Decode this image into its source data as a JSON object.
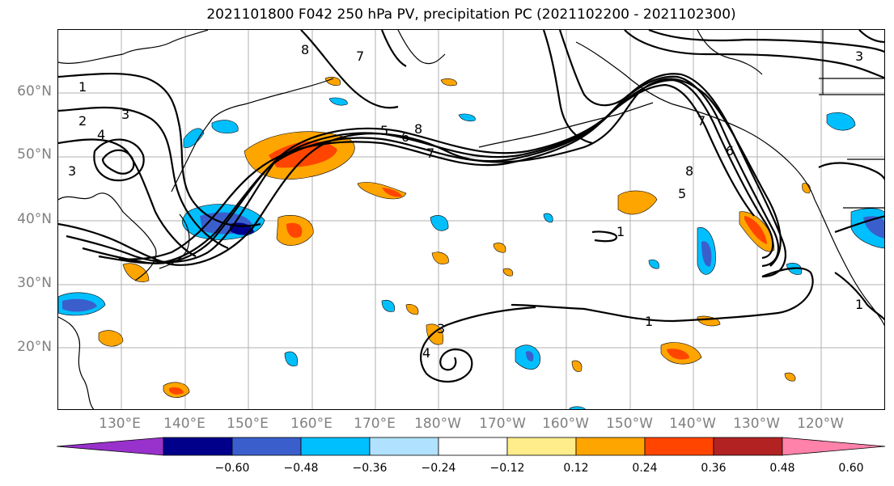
{
  "title": "2021101800 F042 250 hPa PV, precipitation PC (2021102200 - 2021102300)",
  "lat_labels": [
    "60°N",
    "50°N",
    "40°N",
    "30°N",
    "20°N"
  ],
  "lon_labels": [
    "130°E",
    "140°E",
    "150°E",
    "160°E",
    "170°E",
    "180°W",
    "170°W",
    "160°W",
    "150°W",
    "140°W",
    "130°W",
    "120°W"
  ],
  "colorbar": {
    "ticks": [
      "−0.60",
      "−0.48",
      "−0.36",
      "−0.24",
      "−0.12",
      "0.12",
      "0.24",
      "0.36",
      "0.48",
      "0.60"
    ],
    "colors": [
      "#9932cc",
      "#00008b",
      "#3a5fcd",
      "#00bfff",
      "#b0e2ff",
      "#ffffff",
      "#ffec8b",
      "#ffa500",
      "#ff4500",
      "#b22222",
      "#ff82ab"
    ]
  },
  "contour_labels": [
    "1",
    "2",
    "3",
    "4",
    "5",
    "6",
    "7",
    "8"
  ]
}
